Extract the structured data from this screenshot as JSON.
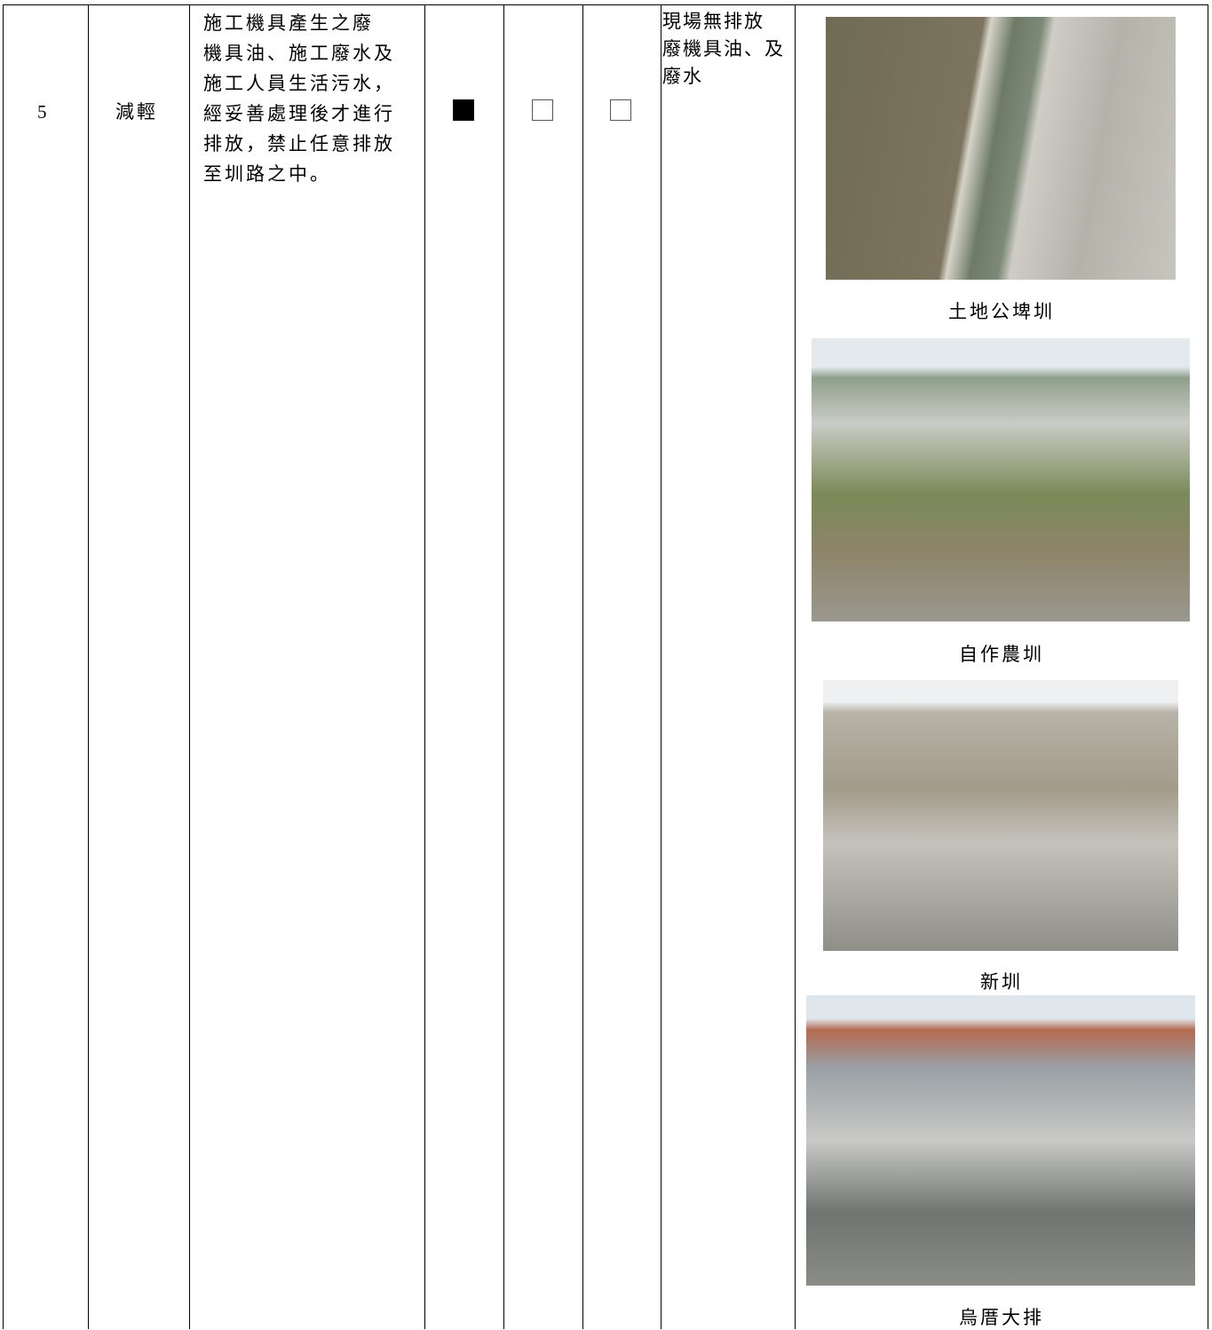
{
  "table": {
    "row": {
      "number": "5",
      "type": "減輕",
      "description": [
        "施工機具產生之廢",
        "機具油、施工廢水及",
        "施工人員生活污水，",
        "經妥善處理後才進行",
        "排放，禁止任意排放",
        "至圳路之中。"
      ],
      "checks": [
        true,
        false,
        false
      ],
      "result": [
        "現場無排放",
        "廢機具油、及",
        "廢水"
      ],
      "photos": [
        {
          "caption": "土地公埤圳"
        },
        {
          "caption": "自作農圳"
        },
        {
          "caption": "新圳"
        },
        {
          "caption": "烏厝大排"
        }
      ]
    }
  }
}
